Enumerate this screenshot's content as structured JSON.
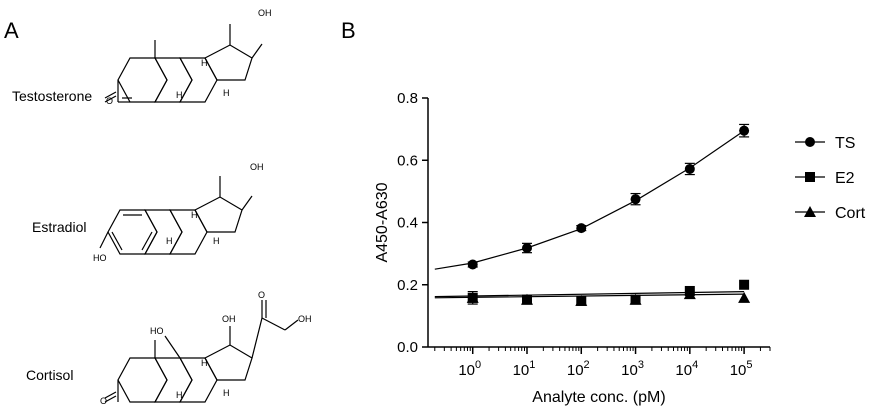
{
  "panels": {
    "a": "A",
    "b": "B"
  },
  "molecules": [
    {
      "name": "Testosterone",
      "atoms": {
        "oh": "OH",
        "ketone": "O",
        "h1": "H",
        "h2": "H",
        "h3": "H"
      }
    },
    {
      "name": "Estradiol",
      "atoms": {
        "oh": "OH",
        "ho": "HO",
        "h1": "H",
        "h2": "H",
        "h3": "H"
      }
    },
    {
      "name": "Cortisol",
      "atoms": {
        "o1": "O",
        "oh1": "OH",
        "oh2": "OH",
        "ho": "HO",
        "ketone": "O",
        "h1": "H",
        "h2": "H",
        "h3": "H"
      }
    }
  ],
  "chart_data": {
    "type": "scatter",
    "xlabel": "Analyte conc. (pM)",
    "ylabel": "A450-A630",
    "x_scale": "log",
    "x": [
      1,
      10,
      100,
      1000,
      10000,
      100000
    ],
    "xticks": [
      {
        "base": "10",
        "exp": "0"
      },
      {
        "base": "10",
        "exp": "1"
      },
      {
        "base": "10",
        "exp": "2"
      },
      {
        "base": "10",
        "exp": "3"
      },
      {
        "base": "10",
        "exp": "4"
      },
      {
        "base": "10",
        "exp": "5"
      }
    ],
    "yticks": [
      "0.0",
      "0.2",
      "0.4",
      "0.6",
      "0.8"
    ],
    "ylim": [
      0,
      0.8
    ],
    "legend_position": "right",
    "series": [
      {
        "name": "TS",
        "marker": "circle",
        "values": [
          0.265,
          0.318,
          0.382,
          0.475,
          0.572,
          0.695
        ],
        "errors": [
          0.008,
          0.015,
          0.008,
          0.018,
          0.018,
          0.02
        ],
        "fit": {
          "x": [
            0.2,
            1,
            10,
            100,
            1000,
            10000,
            100000
          ],
          "y": [
            0.25,
            0.27,
            0.318,
            0.38,
            0.47,
            0.575,
            0.695
          ]
        }
      },
      {
        "name": "E2",
        "marker": "square",
        "values": [
          0.158,
          0.152,
          0.148,
          0.152,
          0.18,
          0.2
        ],
        "errors": [
          0.02,
          0,
          0,
          0,
          0,
          0
        ],
        "fit": {
          "x": [
            0.2,
            100000
          ],
          "y": [
            0.162,
            0.178
          ]
        }
      },
      {
        "name": "Cort",
        "marker": "triangle",
        "values": [
          0.158,
          0.152,
          0.148,
          0.152,
          0.17,
          0.158
        ],
        "errors": [
          0,
          0,
          0,
          0,
          0,
          0
        ],
        "fit": {
          "x": [
            0.2,
            100000
          ],
          "y": [
            0.158,
            0.17
          ]
        }
      }
    ]
  }
}
